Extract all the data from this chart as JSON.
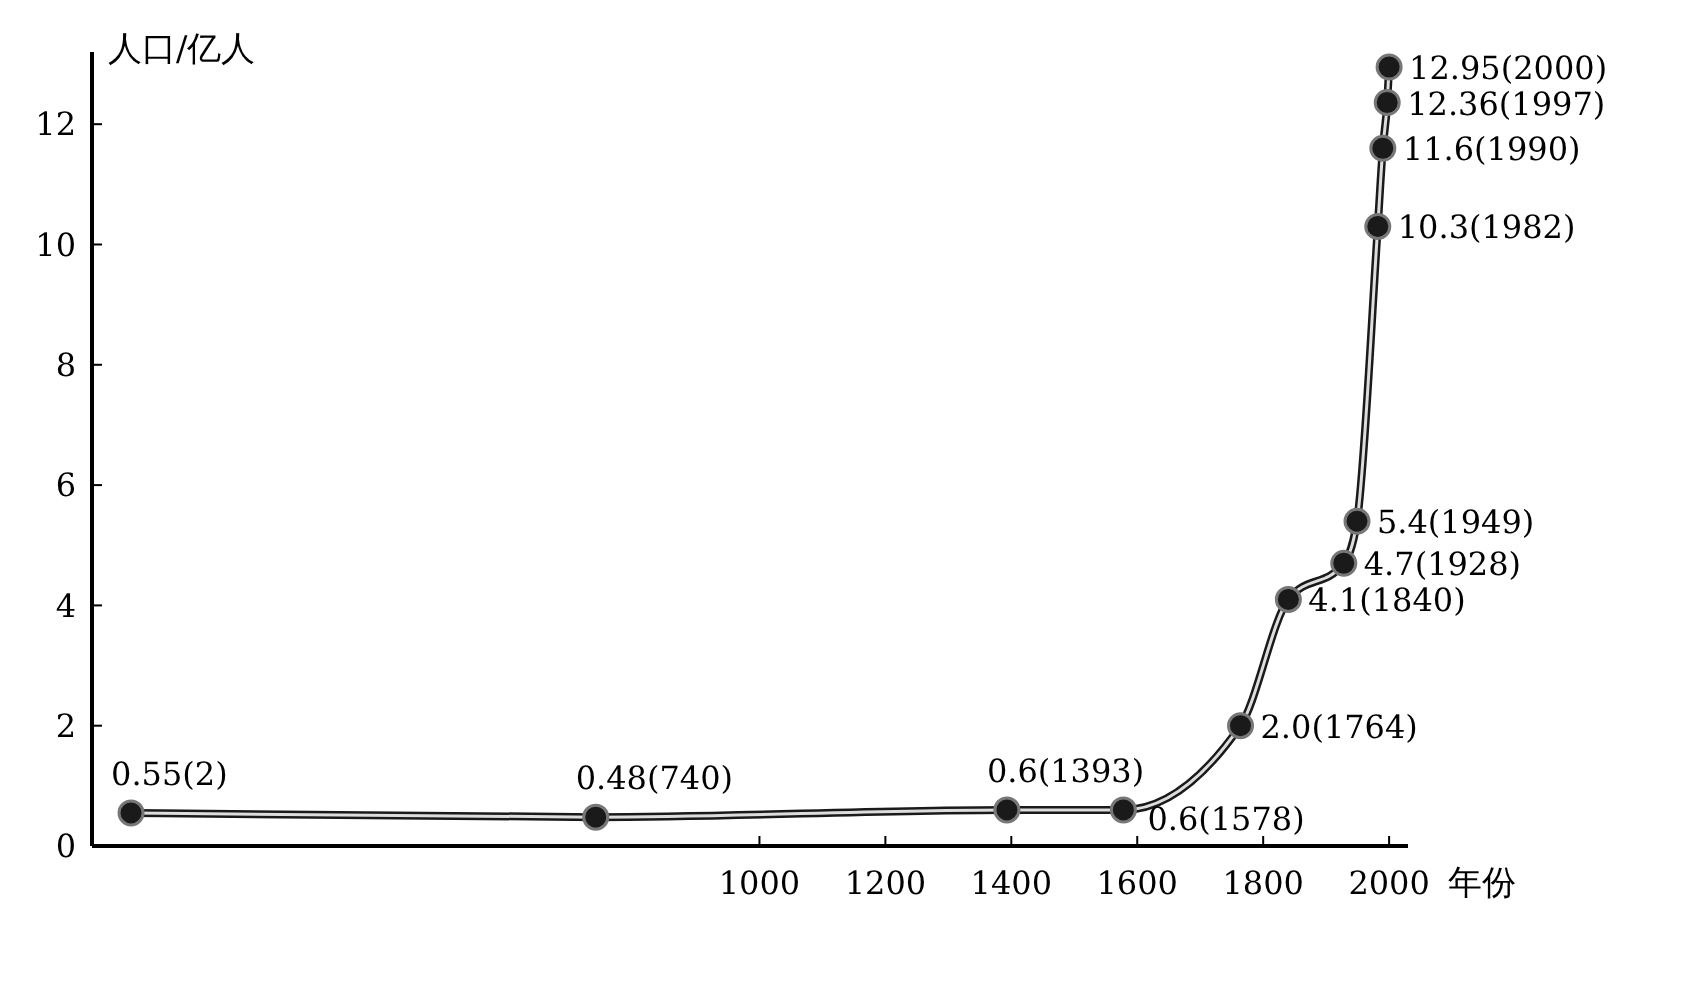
{
  "chart_data": {
    "type": "line",
    "ylabel": "人口/亿人",
    "xlabel": "年份",
    "x": [
      2,
      740,
      1393,
      1578,
      1764,
      1840,
      1928,
      1949,
      1982,
      1990,
      1997,
      2000
    ],
    "values": [
      0.55,
      0.48,
      0.6,
      0.6,
      2.0,
      4.1,
      4.7,
      5.4,
      10.3,
      11.6,
      12.36,
      12.95
    ],
    "value_labels": [
      "0.55(2)",
      "0.48(740)",
      "0.6(1393)",
      "0.6(1578)",
      "2.0(1764)",
      "4.1(1840)",
      "4.7(1928)",
      "5.4(1949)",
      "10.3(1982)",
      "11.6(1990)",
      "12.36(1997)",
      "12.95(2000)"
    ],
    "color": "#1a1a1a",
    "marker": "circle",
    "grid": false,
    "xlim": [
      -60,
      2030
    ],
    "xticks": [
      1000,
      1200,
      1400,
      1600,
      1800,
      2000
    ],
    "ylim": [
      0,
      13.2
    ],
    "yticks": [
      0,
      2,
      4,
      6,
      8,
      10,
      12
    ]
  }
}
